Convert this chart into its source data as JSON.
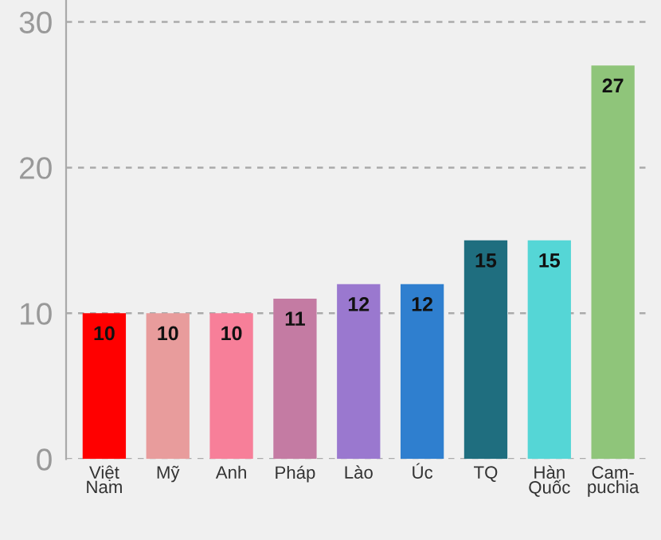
{
  "chart_data": {
    "type": "bar",
    "categories": [
      "Việt\nNam",
      "Mỹ",
      "Anh",
      "Pháp",
      "Lào",
      "Úc",
      "TQ",
      "Hàn\nQuốc",
      "Cam-\npuchia"
    ],
    "values": [
      10,
      10,
      10,
      11,
      12,
      12,
      15,
      15,
      27
    ],
    "colors": [
      "#ff0000",
      "#e89c9c",
      "#f77f99",
      "#c47ba3",
      "#9a78cf",
      "#2f7fcf",
      "#1f6e7f",
      "#55d6d6",
      "#8fc57a"
    ],
    "ylim": [
      0,
      31.5
    ],
    "yticks": [
      0,
      10,
      20,
      30
    ],
    "grid": "y",
    "data_labels": true
  }
}
